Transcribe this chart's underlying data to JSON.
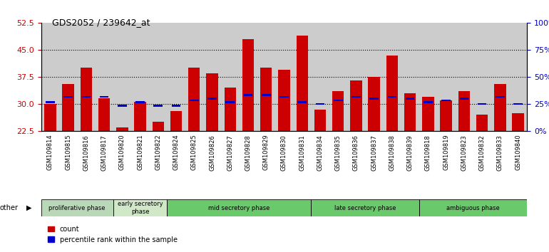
{
  "title": "GDS2052 / 239642_at",
  "samples": [
    "GSM109814",
    "GSM109815",
    "GSM109816",
    "GSM109817",
    "GSM109820",
    "GSM109821",
    "GSM109822",
    "GSM109824",
    "GSM109825",
    "GSM109826",
    "GSM109827",
    "GSM109828",
    "GSM109829",
    "GSM109830",
    "GSM109831",
    "GSM109834",
    "GSM109835",
    "GSM109836",
    "GSM109837",
    "GSM109838",
    "GSM109839",
    "GSM109818",
    "GSM109819",
    "GSM109823",
    "GSM109832",
    "GSM109833",
    "GSM109840"
  ],
  "red_values": [
    30.0,
    35.5,
    40.0,
    31.5,
    23.5,
    30.5,
    25.0,
    28.0,
    40.0,
    38.5,
    34.5,
    48.0,
    40.0,
    39.5,
    49.0,
    28.5,
    33.5,
    36.5,
    37.5,
    43.5,
    33.0,
    32.0,
    31.0,
    33.5,
    27.0,
    35.5,
    27.5
  ],
  "blue_values": [
    30.5,
    32.0,
    32.0,
    32.0,
    29.5,
    30.5,
    29.5,
    29.5,
    31.0,
    31.5,
    30.5,
    32.5,
    32.5,
    32.0,
    30.5,
    30.0,
    31.0,
    32.0,
    31.5,
    32.0,
    31.5,
    30.5,
    31.0,
    31.5,
    30.0,
    32.0,
    30.0
  ],
  "group_defs": [
    {
      "label": "proliferative phase",
      "start": 0,
      "end": 3,
      "color": "#b8d8b8"
    },
    {
      "label": "early secretory\nphase",
      "start": 4,
      "end": 6,
      "color": "#d0e8c8"
    },
    {
      "label": "mid secretory phase",
      "start": 7,
      "end": 14,
      "color": "#6ac96a"
    },
    {
      "label": "late secretory phase",
      "start": 15,
      "end": 20,
      "color": "#6ac96a"
    },
    {
      "label": "ambiguous phase",
      "start": 21,
      "end": 26,
      "color": "#6ac96a"
    }
  ],
  "ymin": 22.5,
  "ymax": 52.5,
  "yticks": [
    22.5,
    30,
    37.5,
    45,
    52.5
  ],
  "right_yticks": [
    0,
    25,
    50,
    75,
    100
  ],
  "bar_color": "#cc0000",
  "marker_color": "#0000cc",
  "bg_color": "#cccccc"
}
